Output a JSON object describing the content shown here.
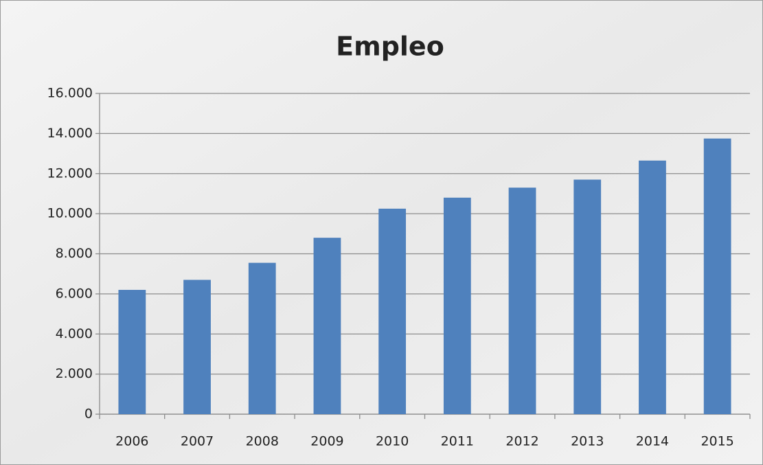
{
  "chart_data": {
    "type": "bar",
    "title": "Empleo",
    "categories": [
      "2006",
      "2007",
      "2008",
      "2009",
      "2010",
      "2011",
      "2012",
      "2013",
      "2014",
      "2015"
    ],
    "values": [
      6200,
      6700,
      7550,
      8800,
      10250,
      10800,
      11300,
      11700,
      12650,
      13750
    ],
    "color": "#4f81bd",
    "ylim": [
      0,
      16000
    ],
    "yticks": [
      0,
      {
        "value": 2000,
        "label": "2.000"
      },
      {
        "value": 4000,
        "label": "4.000"
      },
      {
        "value": 6000,
        "label": "6.000"
      },
      {
        "value": 8000,
        "label": "8.000"
      },
      {
        "value": 10000,
        "label": "10.000"
      },
      {
        "value": 12000,
        "label": "12.000"
      },
      {
        "value": 14000,
        "label": "14.000"
      },
      {
        "value": 16000,
        "label": "16.000"
      }
    ],
    "grid": true
  }
}
